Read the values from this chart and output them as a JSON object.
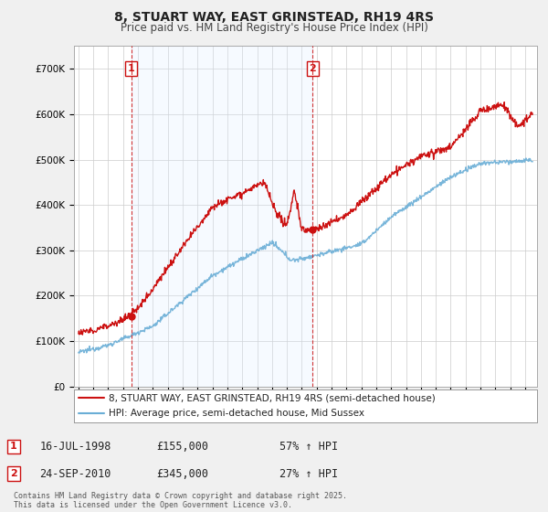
{
  "title": "8, STUART WAY, EAST GRINSTEAD, RH19 4RS",
  "subtitle": "Price paid vs. HM Land Registry's House Price Index (HPI)",
  "background_color": "#f0f0f0",
  "plot_bg_color": "#ffffff",
  "hpi_color": "#6aaed6",
  "price_color": "#cc1111",
  "vline_color": "#cc1111",
  "shade_color": "#ddeeff",
  "ylim": [
    0,
    750000
  ],
  "yticks": [
    0,
    100000,
    200000,
    300000,
    400000,
    500000,
    600000,
    700000
  ],
  "ytick_labels": [
    "£0",
    "£100K",
    "£200K",
    "£300K",
    "£400K",
    "£500K",
    "£600K",
    "£700K"
  ],
  "sale1_date": 1998.54,
  "sale1_price": 155000,
  "sale1_label": "1",
  "sale2_date": 2010.73,
  "sale2_price": 345000,
  "sale2_label": "2",
  "legend_line1": "8, STUART WAY, EAST GRINSTEAD, RH19 4RS (semi-detached house)",
  "legend_line2": "HPI: Average price, semi-detached house, Mid Sussex",
  "annotation1_date": "16-JUL-1998",
  "annotation1_price": "£155,000",
  "annotation1_hpi": "57% ↑ HPI",
  "annotation2_date": "24-SEP-2010",
  "annotation2_price": "£345,000",
  "annotation2_hpi": "27% ↑ HPI",
  "footer": "Contains HM Land Registry data © Crown copyright and database right 2025.\nThis data is licensed under the Open Government Licence v3.0.",
  "xlim_start": 1994.7,
  "xlim_end": 2025.8
}
